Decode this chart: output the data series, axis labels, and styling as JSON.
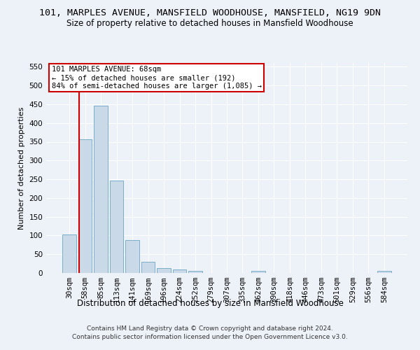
{
  "title_line1": "101, MARPLES AVENUE, MANSFIELD WOODHOUSE, MANSFIELD, NG19 9DN",
  "title_line2": "Size of property relative to detached houses in Mansfield Woodhouse",
  "xlabel": "Distribution of detached houses by size in Mansfield Woodhouse",
  "ylabel": "Number of detached properties",
  "footnote_line1": "Contains HM Land Registry data © Crown copyright and database right 2024.",
  "footnote_line2": "Contains public sector information licensed under the Open Government Licence v3.0.",
  "bin_labels": [
    "30sqm",
    "58sqm",
    "85sqm",
    "113sqm",
    "141sqm",
    "169sqm",
    "196sqm",
    "224sqm",
    "252sqm",
    "279sqm",
    "307sqm",
    "335sqm",
    "362sqm",
    "390sqm",
    "418sqm",
    "446sqm",
    "473sqm",
    "501sqm",
    "529sqm",
    "556sqm",
    "584sqm"
  ],
  "bar_values": [
    103,
    357,
    447,
    246,
    88,
    30,
    14,
    9,
    6,
    0,
    0,
    0,
    6,
    0,
    0,
    0,
    0,
    0,
    0,
    0,
    6
  ],
  "bar_color": "#c9d9e8",
  "bar_edge_color": "#7aadcc",
  "property_label": "101 MARPLES AVENUE: 68sqm",
  "annotation_line1": "← 15% of detached houses are smaller (192)",
  "annotation_line2": "84% of semi-detached houses are larger (1,085) →",
  "annotation_box_color": "#ffffff",
  "annotation_box_edge_color": "#cc0000",
  "vline_color": "#cc0000",
  "vline_x_index": 1,
  "vline_x_offset": -0.4,
  "ylim": [
    0,
    560
  ],
  "yticks": [
    0,
    50,
    100,
    150,
    200,
    250,
    300,
    350,
    400,
    450,
    500,
    550
  ],
  "background_color": "#edf2f8",
  "grid_color": "#ffffff",
  "title_fontsize": 9.5,
  "subtitle_fontsize": 8.5,
  "ylabel_fontsize": 8,
  "xlabel_fontsize": 8.5,
  "tick_fontsize": 7.5,
  "annotation_fontsize": 7.5,
  "footnote_fontsize": 6.5
}
